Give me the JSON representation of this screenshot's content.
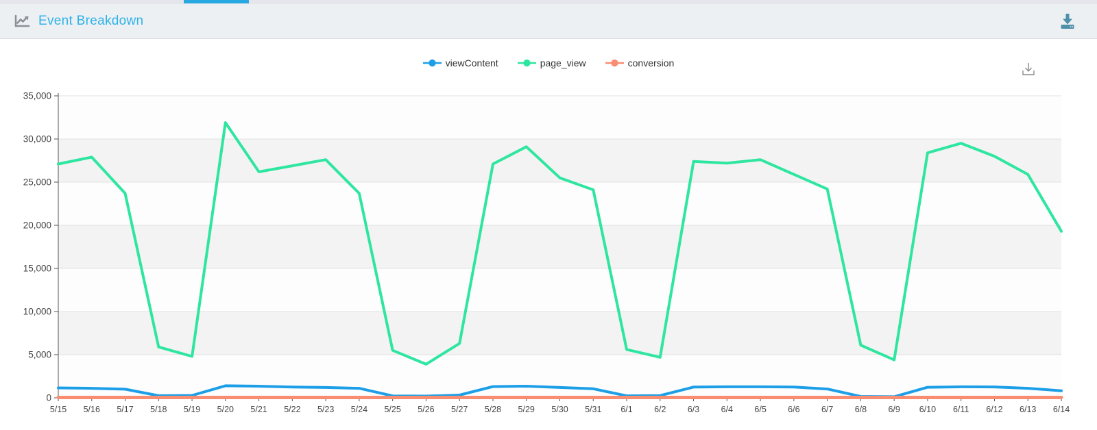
{
  "header": {
    "title": "Event Breakdown",
    "title_color": "#2db2e9",
    "icon": "line-chart-icon",
    "download_icon_color": "#4e8fa9",
    "background": "#edf0f2"
  },
  "top_tab_indicator_color": "#29a9e1",
  "toolbox": {
    "save_image_icon": "download-image-icon",
    "icon_color": "#8a8a8a"
  },
  "chart_data": {
    "type": "line",
    "title": "",
    "xlabel": "",
    "ylabel": "",
    "x": [
      "5/15",
      "5/16",
      "5/17",
      "5/18",
      "5/19",
      "5/20",
      "5/21",
      "5/22",
      "5/23",
      "5/24",
      "5/25",
      "5/26",
      "5/27",
      "5/28",
      "5/29",
      "5/30",
      "5/31",
      "6/1",
      "6/2",
      "6/3",
      "6/4",
      "6/5",
      "6/6",
      "6/7",
      "6/8",
      "6/9",
      "6/10",
      "6/11",
      "6/12",
      "6/13",
      "6/14"
    ],
    "series": [
      {
        "name": "viewContent",
        "color": "#1d9fe8",
        "values": [
          1150,
          1100,
          1000,
          250,
          280,
          1400,
          1350,
          1250,
          1200,
          1100,
          220,
          200,
          320,
          1300,
          1350,
          1200,
          1050,
          230,
          260,
          1250,
          1280,
          1280,
          1250,
          1020,
          160,
          130,
          1220,
          1280,
          1260,
          1100,
          820
        ]
      },
      {
        "name": "page_view",
        "color": "#2ee6a0",
        "values": [
          27100,
          27900,
          23700,
          5900,
          4800,
          31900,
          26200,
          26900,
          27600,
          23700,
          5500,
          3900,
          6300,
          27100,
          29100,
          25500,
          24100,
          5600,
          4700,
          27400,
          27200,
          27600,
          25900,
          24200,
          6100,
          4400,
          28400,
          29500,
          28000,
          25900,
          19300
        ]
      },
      {
        "name": "conversion",
        "color": "#f98d72",
        "values": [
          40,
          40,
          40,
          40,
          40,
          40,
          40,
          40,
          40,
          40,
          40,
          40,
          40,
          40,
          40,
          40,
          40,
          40,
          40,
          40,
          40,
          40,
          40,
          40,
          40,
          40,
          40,
          40,
          40,
          40,
          40
        ]
      }
    ],
    "ylim": [
      0,
      35000
    ],
    "ytick_step": 5000,
    "ytick_labels": [
      "0",
      "5,000",
      "10,000",
      "15,000",
      "20,000",
      "25,000",
      "30,000",
      "35,000"
    ],
    "legend_position": "top-center",
    "grid": true,
    "split_area_alternating": true,
    "axis_color": "#555555",
    "gridline_color": "#e2e2e2",
    "label_color": "#444444"
  }
}
